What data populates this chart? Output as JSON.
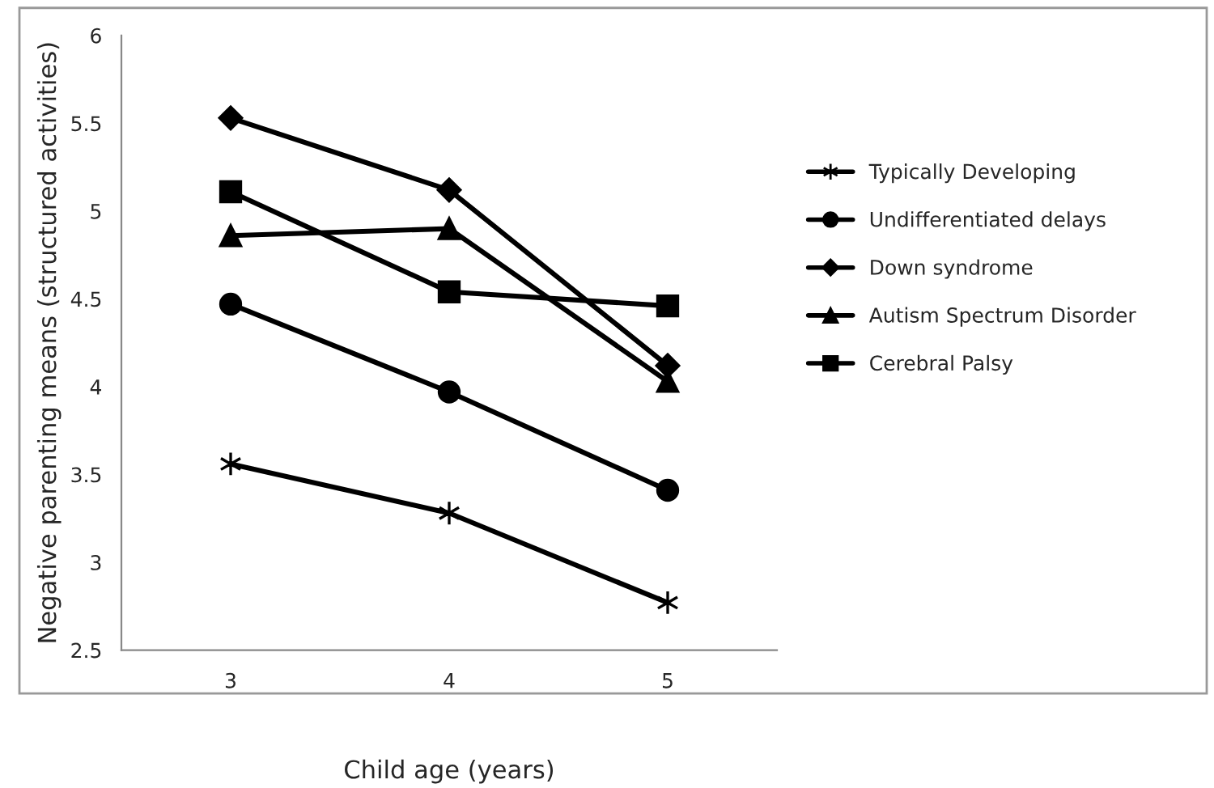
{
  "chart_data": {
    "type": "line",
    "xlabel": "Child age (years)",
    "ylabel": "Negative parenting means (structured activities)",
    "categories": [
      "3",
      "4",
      "5"
    ],
    "ylim": [
      2.5,
      6
    ],
    "yticks": [
      2.5,
      3,
      3.5,
      4,
      4.5,
      5,
      5.5,
      6
    ],
    "grid": false,
    "legend": "right",
    "line_style": "solid",
    "series": [
      {
        "name": "Typically Developing",
        "color": "#000000",
        "marker": "cross",
        "values": [
          3.56,
          3.28,
          2.77
        ]
      },
      {
        "name": "Undifferentiated delays",
        "color": "#000000",
        "marker": "circle",
        "values": [
          4.47,
          3.97,
          3.41
        ]
      },
      {
        "name": "Down syndrome",
        "color": "#000000",
        "marker": "diamond",
        "values": [
          5.53,
          5.12,
          4.12
        ]
      },
      {
        "name": "Autism Spectrum Disorder",
        "color": "#000000",
        "marker": "triangle",
        "values": [
          4.86,
          4.9,
          4.03
        ]
      },
      {
        "name": "Cerebral Palsy",
        "color": "#000000",
        "marker": "square",
        "values": [
          5.11,
          4.54,
          4.46
        ]
      }
    ]
  }
}
